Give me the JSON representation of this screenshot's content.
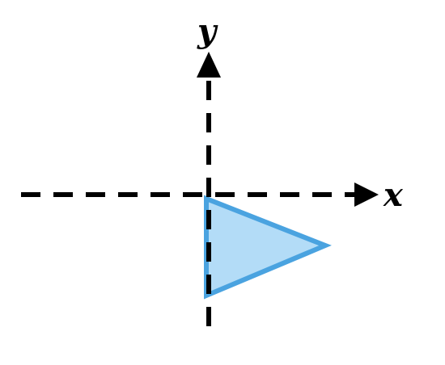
{
  "axes": {
    "x_label": "x",
    "y_label": "y",
    "line_style": "dashed",
    "color": "#000000"
  },
  "shape": {
    "type": "triangle",
    "fill_color": "#b3dcf7",
    "stroke_color": "#4aa3e0"
  }
}
